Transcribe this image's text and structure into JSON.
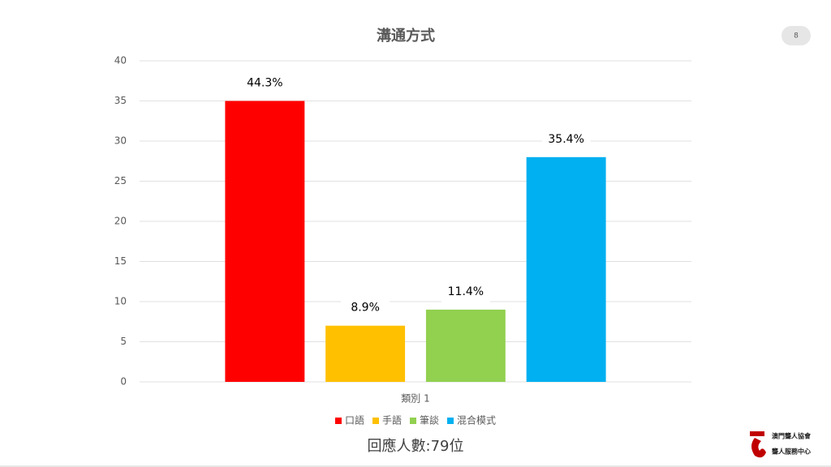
{
  "chart_data": {
    "type": "bar",
    "title": "溝通方式",
    "categories": [
      "類別 1"
    ],
    "series": [
      {
        "name": "口語",
        "color": "#ff0000",
        "values": [
          35
        ],
        "value_labels": [
          "44.3%"
        ]
      },
      {
        "name": "手語",
        "color": "#ffc000",
        "values": [
          7
        ],
        "value_labels": [
          "8.9%"
        ]
      },
      {
        "name": "筆談",
        "color": "#92d050",
        "values": [
          9
        ],
        "value_labels": [
          "11.4%"
        ]
      },
      {
        "name": "混合模式",
        "color": "#00b0f0",
        "values": [
          28
        ],
        "value_labels": [
          "35.4%"
        ]
      }
    ],
    "ylim": [
      0,
      40
    ],
    "yticks": [
      0,
      5,
      10,
      15,
      20,
      25,
      30,
      35,
      40
    ],
    "grid": true,
    "legend": "bottom"
  },
  "slide_number": "8",
  "footer": "回應人數:79位",
  "logo": {
    "name": "澳門聾人協會",
    "subname": "聾人服務中心"
  }
}
